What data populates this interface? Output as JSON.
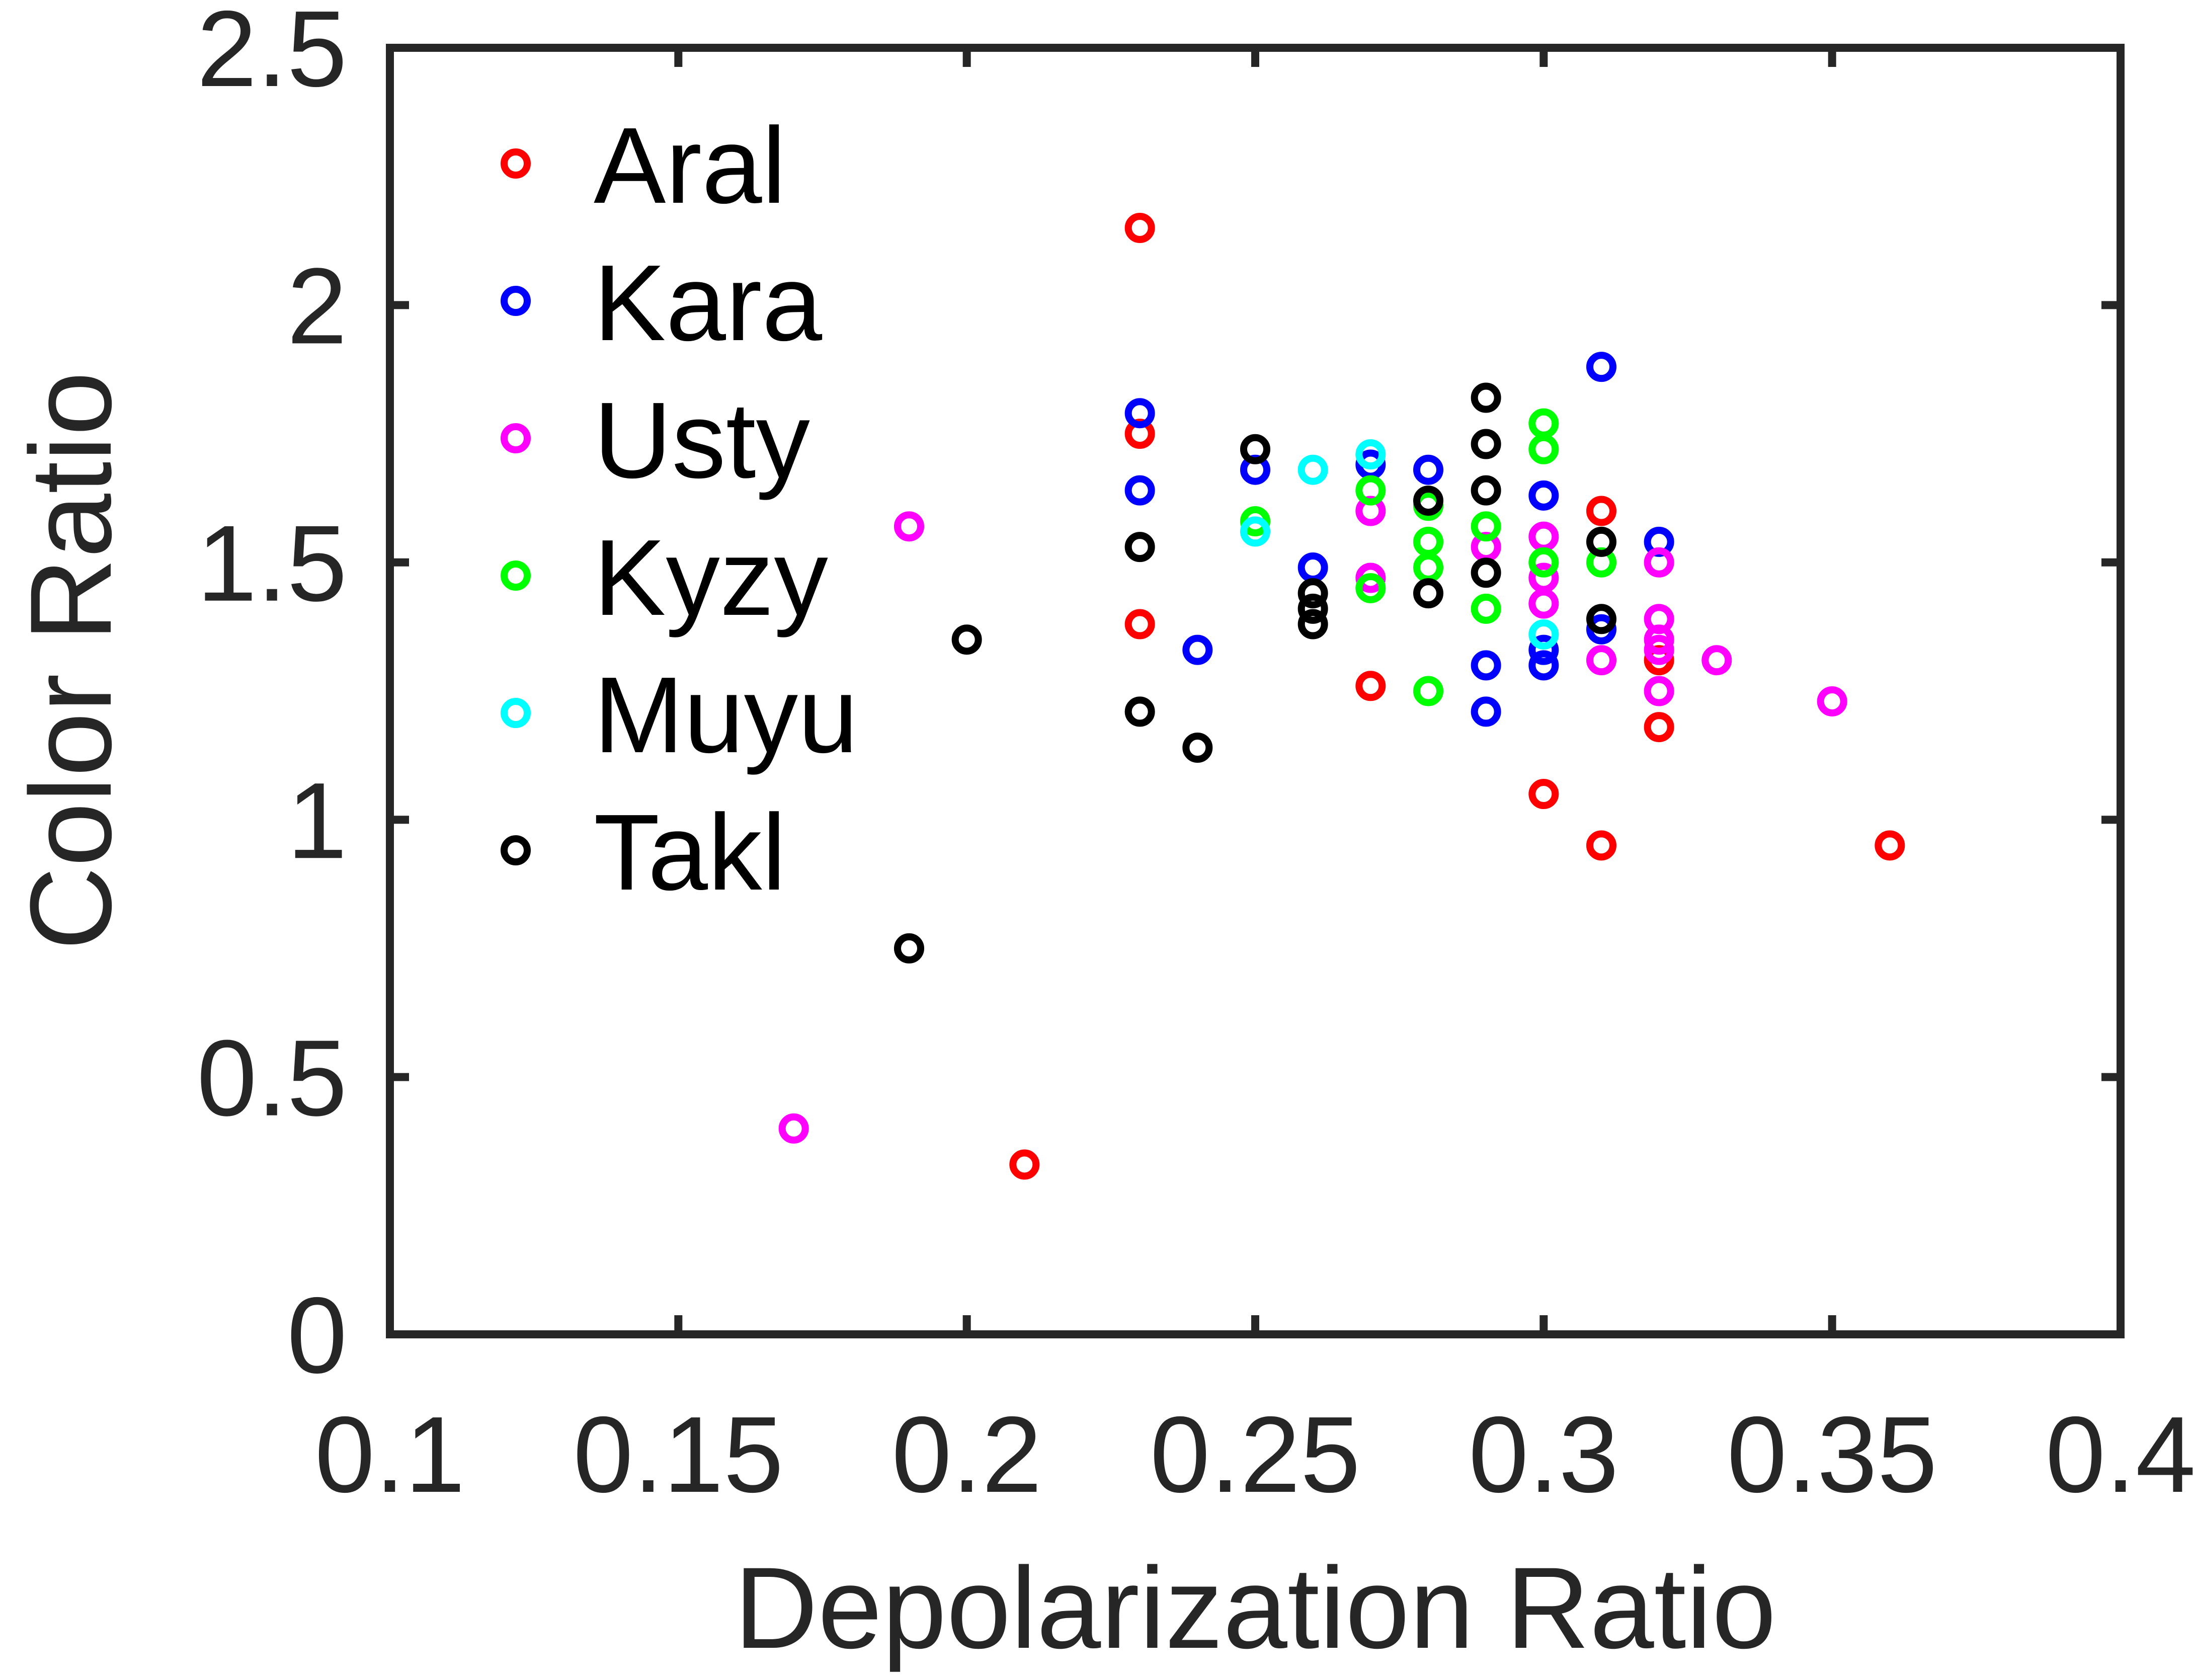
{
  "chart_data": {
    "type": "scatter",
    "title": "",
    "xlabel": "Depolarization Ratio",
    "ylabel": "Color Ratio",
    "xlim": [
      0.1,
      0.4
    ],
    "ylim": [
      0,
      2.5
    ],
    "xticks": [
      0.1,
      0.15,
      0.2,
      0.25,
      0.3,
      0.35,
      0.4
    ],
    "xtick_labels": [
      "0.1",
      "0.15",
      "0.2",
      "0.25",
      "0.3",
      "0.35",
      "0.4"
    ],
    "yticks": [
      0,
      0.5,
      1,
      1.5,
      2,
      2.5
    ],
    "ytick_labels": [
      "0",
      "0.5",
      "1",
      "1.5",
      "2",
      "2.5"
    ],
    "grid": false,
    "legend_position": "top-left",
    "marker": "open-circle",
    "series": [
      {
        "name": "Aral",
        "color": "#ff0000",
        "points": [
          {
            "x": 0.23,
            "y": 2.15
          },
          {
            "x": 0.23,
            "y": 1.75
          },
          {
            "x": 0.23,
            "y": 1.38
          },
          {
            "x": 0.21,
            "y": 0.33
          },
          {
            "x": 0.27,
            "y": 1.26
          },
          {
            "x": 0.3,
            "y": 1.05
          },
          {
            "x": 0.31,
            "y": 0.95
          },
          {
            "x": 0.31,
            "y": 1.6
          },
          {
            "x": 0.32,
            "y": 1.31
          },
          {
            "x": 0.32,
            "y": 1.18
          },
          {
            "x": 0.36,
            "y": 0.95
          }
        ]
      },
      {
        "name": "Kara",
        "color": "#0000ff",
        "points": [
          {
            "x": 0.23,
            "y": 1.79
          },
          {
            "x": 0.23,
            "y": 1.64
          },
          {
            "x": 0.24,
            "y": 1.33
          },
          {
            "x": 0.25,
            "y": 1.68
          },
          {
            "x": 0.26,
            "y": 1.49
          },
          {
            "x": 0.27,
            "y": 1.69
          },
          {
            "x": 0.28,
            "y": 1.68
          },
          {
            "x": 0.29,
            "y": 1.3
          },
          {
            "x": 0.29,
            "y": 1.21
          },
          {
            "x": 0.3,
            "y": 1.63
          },
          {
            "x": 0.3,
            "y": 1.3
          },
          {
            "x": 0.3,
            "y": 1.33
          },
          {
            "x": 0.31,
            "y": 1.88
          },
          {
            "x": 0.31,
            "y": 1.37
          },
          {
            "x": 0.32,
            "y": 1.54
          }
        ]
      },
      {
        "name": "Usty",
        "color": "#ff00ff",
        "points": [
          {
            "x": 0.17,
            "y": 0.4
          },
          {
            "x": 0.19,
            "y": 1.57
          },
          {
            "x": 0.27,
            "y": 1.6
          },
          {
            "x": 0.27,
            "y": 1.47
          },
          {
            "x": 0.29,
            "y": 1.53
          },
          {
            "x": 0.3,
            "y": 1.55
          },
          {
            "x": 0.3,
            "y": 1.47
          },
          {
            "x": 0.3,
            "y": 1.42
          },
          {
            "x": 0.31,
            "y": 1.31
          },
          {
            "x": 0.32,
            "y": 1.5
          },
          {
            "x": 0.32,
            "y": 1.39
          },
          {
            "x": 0.32,
            "y": 1.35
          },
          {
            "x": 0.32,
            "y": 1.33
          },
          {
            "x": 0.32,
            "y": 1.25
          },
          {
            "x": 0.33,
            "y": 1.31
          },
          {
            "x": 0.35,
            "y": 1.23
          }
        ]
      },
      {
        "name": "Kyzy",
        "color": "#00ff00",
        "points": [
          {
            "x": 0.25,
            "y": 1.58
          },
          {
            "x": 0.27,
            "y": 1.64
          },
          {
            "x": 0.27,
            "y": 1.45
          },
          {
            "x": 0.28,
            "y": 1.61
          },
          {
            "x": 0.28,
            "y": 1.54
          },
          {
            "x": 0.28,
            "y": 1.49
          },
          {
            "x": 0.28,
            "y": 1.25
          },
          {
            "x": 0.29,
            "y": 1.57
          },
          {
            "x": 0.29,
            "y": 1.41
          },
          {
            "x": 0.3,
            "y": 1.77
          },
          {
            "x": 0.3,
            "y": 1.72
          },
          {
            "x": 0.3,
            "y": 1.5
          },
          {
            "x": 0.31,
            "y": 1.5
          }
        ]
      },
      {
        "name": "Muyu",
        "color": "#00ffff",
        "points": [
          {
            "x": 0.25,
            "y": 1.56
          },
          {
            "x": 0.26,
            "y": 1.68
          },
          {
            "x": 0.27,
            "y": 1.71
          },
          {
            "x": 0.3,
            "y": 1.36
          }
        ]
      },
      {
        "name": "Takl",
        "color": "#000000",
        "points": [
          {
            "x": 0.19,
            "y": 0.75
          },
          {
            "x": 0.2,
            "y": 1.35
          },
          {
            "x": 0.23,
            "y": 1.53
          },
          {
            "x": 0.23,
            "y": 1.21
          },
          {
            "x": 0.24,
            "y": 1.14
          },
          {
            "x": 0.25,
            "y": 1.72
          },
          {
            "x": 0.26,
            "y": 1.44
          },
          {
            "x": 0.26,
            "y": 1.41
          },
          {
            "x": 0.26,
            "y": 1.38
          },
          {
            "x": 0.28,
            "y": 1.62
          },
          {
            "x": 0.28,
            "y": 1.44
          },
          {
            "x": 0.29,
            "y": 1.82
          },
          {
            "x": 0.29,
            "y": 1.73
          },
          {
            "x": 0.29,
            "y": 1.64
          },
          {
            "x": 0.29,
            "y": 1.48
          },
          {
            "x": 0.31,
            "y": 1.54
          },
          {
            "x": 0.31,
            "y": 1.39
          }
        ]
      }
    ]
  }
}
